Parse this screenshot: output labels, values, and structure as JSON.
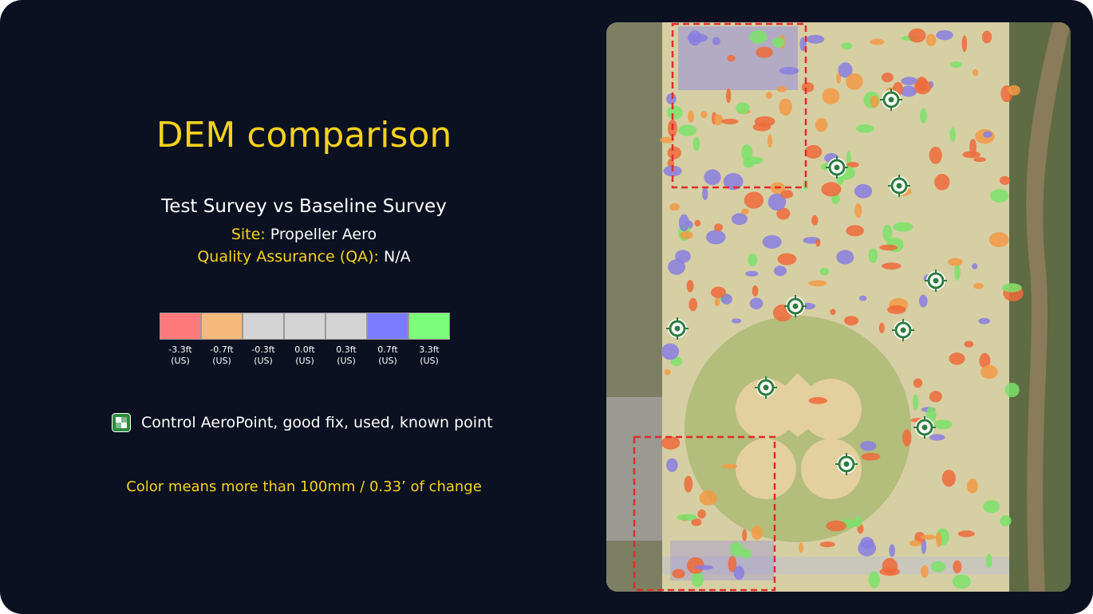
{
  "title": "DEM comparison",
  "subtitle": "Test Survey vs Baseline Survey",
  "site": {
    "label": "Site:",
    "value": "Propeller Aero"
  },
  "qa": {
    "label": "Quality Assurance (QA):",
    "value": "N/A"
  },
  "legend": [
    {
      "color": "#ff7b7b",
      "label": "-3.3ft",
      "unit": "(US)"
    },
    {
      "color": "#f5b97a",
      "label": "-0.7ft",
      "unit": "(US)"
    },
    {
      "color": "#d4d4d4",
      "label": "-0.3ft",
      "unit": "(US)"
    },
    {
      "color": "#d4d4d4",
      "label": "0.0ft",
      "unit": "(US)"
    },
    {
      "color": "#d4d4d4",
      "label": "0.3ft",
      "unit": "(US)"
    },
    {
      "color": "#7b7bff",
      "label": "0.7ft",
      "unit": "(US)"
    },
    {
      "color": "#7bff7b",
      "label": "3.3ft",
      "unit": "(US)"
    }
  ],
  "control_point": "Control AeroPoint, good fix, used, known point",
  "note": "Color means more than 100mm / 0.33’ of change"
}
